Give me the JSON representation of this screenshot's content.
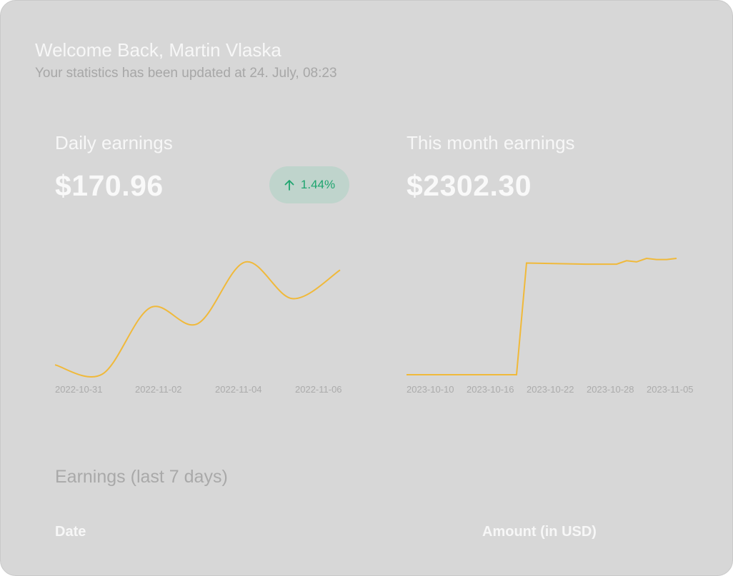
{
  "header": {
    "title": "Welcome Back, Martin Vlaska",
    "subtitle": "Your statistics has been updated at 24. July, 08:23"
  },
  "daily": {
    "title": "Daily earnings",
    "amount": "$170.96",
    "change": "1.44%",
    "change_direction": "up",
    "change_color": "#1fa56f"
  },
  "monthly": {
    "title": "This month earnings",
    "amount": "$2302.30"
  },
  "table": {
    "title": "Earnings (last 7 days)",
    "col_date": "Date",
    "col_amount": "Amount (in USD)"
  },
  "colors": {
    "card_bg": "#d7d7d7",
    "line": "#f0b93a"
  },
  "chart_data": [
    {
      "type": "line",
      "x": [
        "2022-10-31",
        "2022-11-01",
        "2022-11-02",
        "2022-11-03",
        "2022-11-04",
        "2022-11-05",
        "2022-11-06"
      ],
      "values": [
        0.08,
        0.0,
        0.58,
        0.44,
        0.98,
        0.66,
        0.91
      ],
      "x_tick_labels": [
        "2022-10-31",
        "2022-11-02",
        "2022-11-04",
        "2022-11-06"
      ],
      "grid": false,
      "line_color": "#f0b93a"
    },
    {
      "type": "line",
      "x": [
        "2023-10-10",
        "2023-10-16",
        "2023-10-21",
        "2023-10-22",
        "2023-10-28",
        "2023-10-31",
        "2023-11-01",
        "2023-11-02",
        "2023-11-03",
        "2023-11-04",
        "2023-11-05",
        "2023-11-06"
      ],
      "values": [
        0.0,
        0.0,
        0.0,
        0.96,
        0.95,
        0.95,
        0.98,
        0.97,
        1.0,
        0.99,
        0.99,
        1.0
      ],
      "x_tick_labels": [
        "2023-10-10",
        "2023-10-16",
        "2023-10-22",
        "2023-10-28",
        "2023-11-05"
      ],
      "grid": false,
      "line_color": "#f0b93a"
    }
  ]
}
